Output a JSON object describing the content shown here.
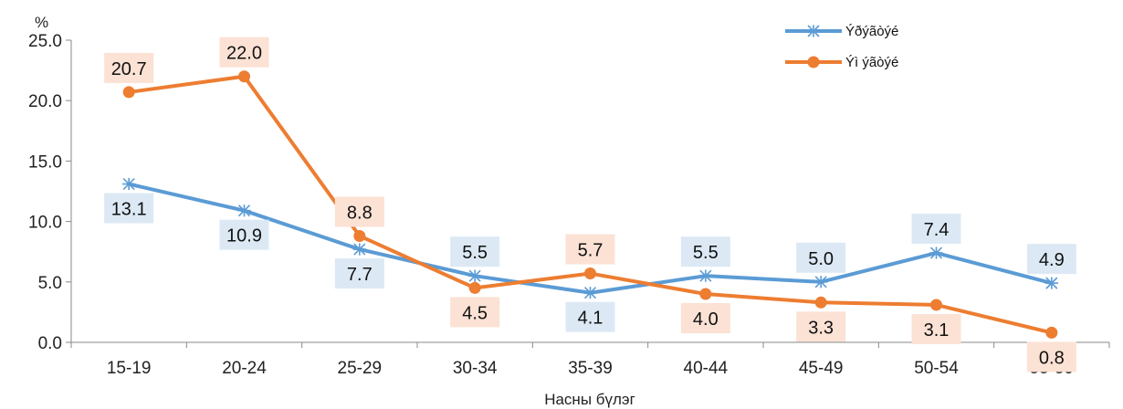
{
  "chart_data": {
    "type": "line",
    "title": "",
    "xlabel": "Насны бүлэг",
    "ylabel": "%",
    "ylim": [
      0,
      25
    ],
    "yticks": [
      "0.0",
      "5.0",
      "10.0",
      "15.0",
      "20.0",
      "25.0"
    ],
    "categories": [
      "15-19",
      "20-24",
      "25-29",
      "30-34",
      "35-39",
      "40-44",
      "45-49",
      "50-54",
      "55-59"
    ],
    "grid": false,
    "legend": "top-right",
    "series": [
      {
        "name": "Ýðýãòýé",
        "color": "#5b9bd5",
        "label_bg": "#dce9f5",
        "marker": "asterisk",
        "values": [
          13.1,
          10.9,
          7.7,
          5.5,
          4.1,
          5.5,
          5.0,
          7.4,
          4.9
        ]
      },
      {
        "name": "Ýì ýãòýé",
        "color": "#ed7d31",
        "label_bg": "#fbe2d4",
        "marker": "circle",
        "values": [
          20.7,
          22.0,
          8.8,
          4.5,
          5.7,
          4.0,
          3.3,
          3.1,
          0.8
        ]
      }
    ]
  }
}
